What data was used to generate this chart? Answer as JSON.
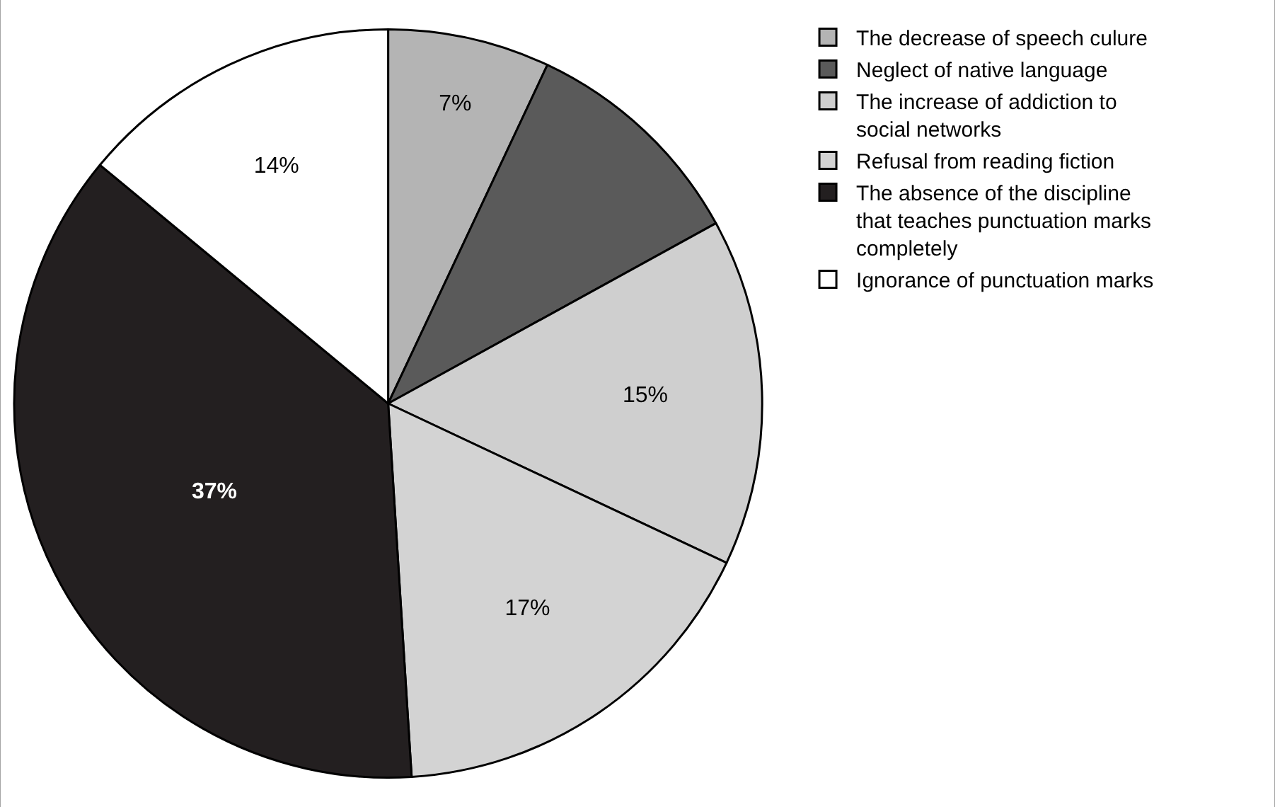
{
  "chart_data": {
    "type": "pie",
    "categories": [
      "The decrease of speech culure",
      "Neglect of native language",
      "The increase of addiction to social networks",
      "Refusal from reading fiction",
      "The absence of the discipline that teaches punctuation marks completely",
      "Ignorance of punctuation marks"
    ],
    "values": [
      7,
      10,
      15,
      17,
      37,
      14
    ],
    "value_labels": [
      "7%",
      null,
      "15%",
      "17%",
      "37%",
      "14%"
    ],
    "colors": [
      "#b4b4b4",
      "#5a5a5a",
      "#cfcfcf",
      "#d3d3d3",
      "#231f20",
      "#ffffff"
    ],
    "legend": "right"
  }
}
